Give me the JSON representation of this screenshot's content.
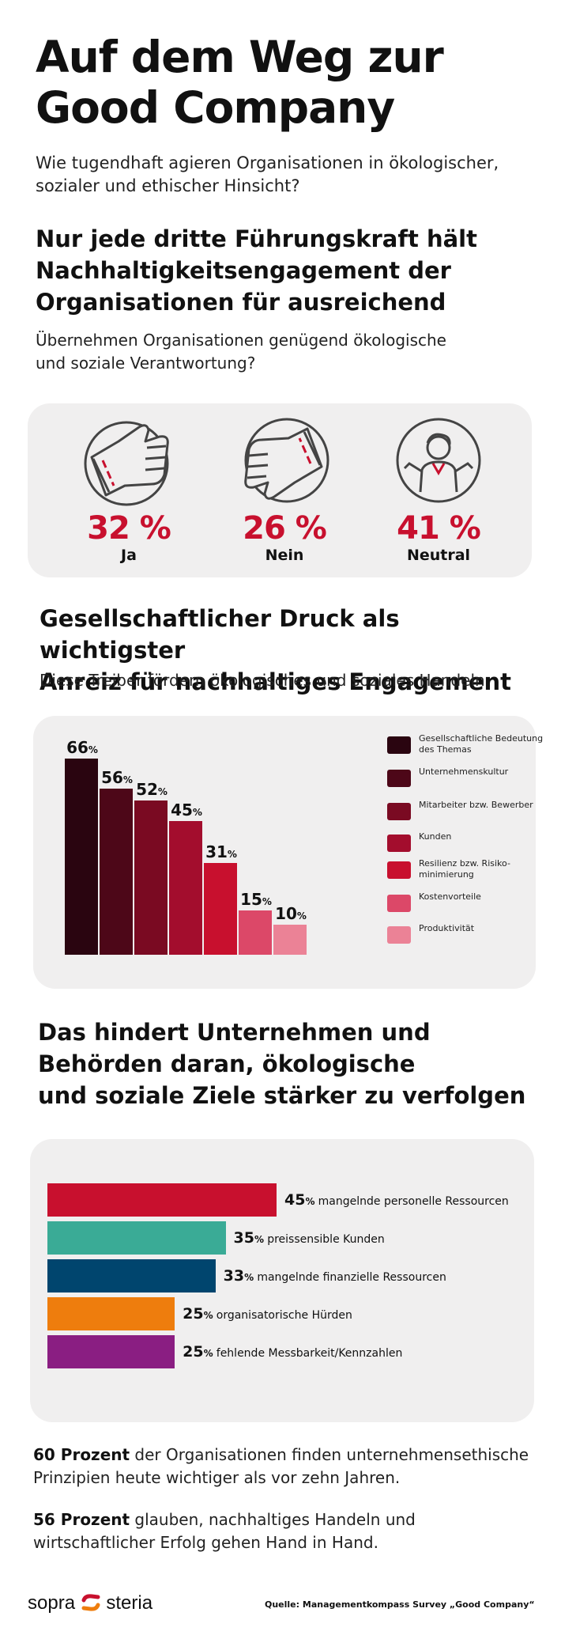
{
  "header": {
    "title_line1": "Auf dem Weg zur",
    "title_line2": "Good Company",
    "subtitle_line1": "Wie tugendhaft agieren Organisationen in ökologischer,",
    "subtitle_line2": "sozialer und ethischer Hinsicht?"
  },
  "section1": {
    "heading_line1": "Nur jede dritte Führungskraft hält",
    "heading_line2": "Nachhaltigkeitsengagement der",
    "heading_line3": "Organisationen für ausreichend",
    "question_line1": "Übernehmen Organisationen genügend ökologische",
    "question_line2": "und soziale Verantwortung?",
    "votes": [
      {
        "pct": "32 %",
        "label": "Ja",
        "icon": "thumbs-up-icon"
      },
      {
        "pct": "26 %",
        "label": "Nein",
        "icon": "thumbs-down-icon"
      },
      {
        "pct": "41 %",
        "label": "Neutral",
        "icon": "shrugging-person-icon"
      }
    ]
  },
  "section2": {
    "heading_line1": "Gesellschaftlicher Druck als wichtigster",
    "heading_line2": "Anreiz für nachhaltiges Engagement",
    "subtitle": "Diese Treiber fördern ökologisches und soziales Handeln"
  },
  "section3": {
    "heading_line1": "Das hindert Unternehmen und",
    "heading_line2": "Behörden daran, ökologische",
    "heading_line3": "und soziale Ziele stärker zu verfolgen"
  },
  "chart_data": [
    {
      "type": "bar",
      "unit": "%",
      "categories": [
        "Gesellschaftliche Bedeutung des Themas",
        "Unternehmenskultur",
        "Mitarbeiter bzw. Bewerber",
        "Kunden",
        "Resilienz bzw. Risiko-minimierung",
        "Kostenvorteile",
        "Produktivität"
      ],
      "values": [
        66,
        56,
        52,
        45,
        31,
        15,
        10
      ],
      "colors": [
        "#2a0510",
        "#4d0718",
        "#7a0a22",
        "#a30d2d",
        "#c8102e",
        "#dc4868",
        "#eb8296"
      ],
      "legend_position": "right"
    },
    {
      "type": "bar",
      "orientation": "horizontal",
      "unit": "%",
      "categories": [
        "mangelnde personelle Ressourcen",
        "preissensible Kunden",
        "mangelnde finanzielle Ressourcen",
        "organisatorische Hürden",
        "fehlende Messbarkeit/Kennzahlen"
      ],
      "values": [
        45,
        35,
        33,
        25,
        25
      ],
      "colors": [
        "#c8102e",
        "#3aab96",
        "#00456e",
        "#ee7d0d",
        "#8a1e82"
      ]
    }
  ],
  "facts": [
    {
      "bold": "60 Prozent",
      "text_line1": " der Organisationen finden unternehmensethische",
      "text_line2": "Prinzipien heute wichtiger als vor zehn Jahren."
    },
    {
      "bold": "56 Prozent",
      "text_line1": " glauben, nachhaltiges Handeln und",
      "text_line2": "wirtschaftlicher Erfolg gehen Hand in Hand."
    }
  ],
  "footer": {
    "logo_left": "sopra",
    "logo_right": "steria",
    "source": "Quelle: Managementkompass Survey „Good Company“"
  },
  "colors": {
    "accent": "#c8102e",
    "card_bg": "#f0efef"
  }
}
